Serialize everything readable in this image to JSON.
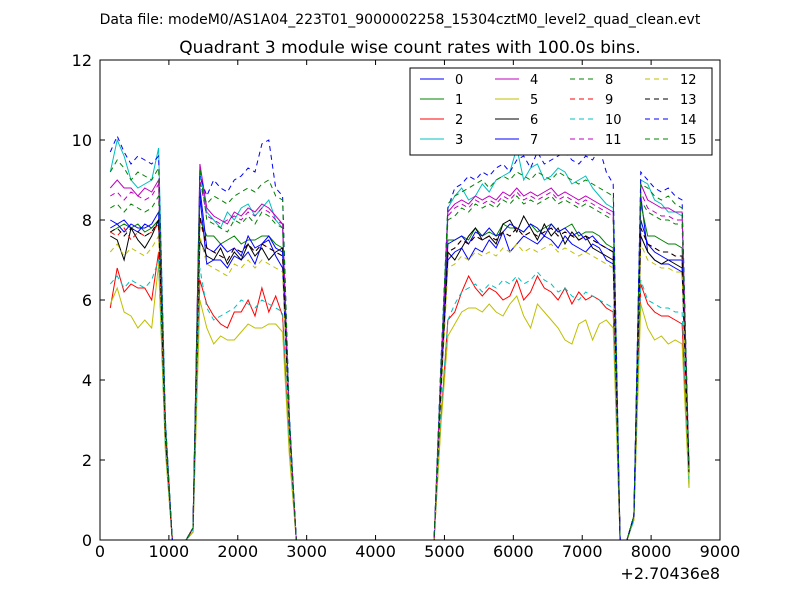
{
  "suptitle": "Data file: modeM0/AS1A04_223T01_9000002258_15304cztM0_level2_quad_clean.evt",
  "chart_data": {
    "type": "line",
    "title": "Quadrant 3 module wise count rates with 100.0s bins.",
    "xlabel": "",
    "ylabel": "",
    "x_offset_label": "+2.70436e8",
    "xlim": [
      0,
      9000
    ],
    "ylim": [
      0,
      12
    ],
    "xticks": [
      0,
      1000,
      2000,
      3000,
      4000,
      5000,
      6000,
      7000,
      8000,
      9000
    ],
    "yticks": [
      0,
      2,
      4,
      6,
      8,
      10,
      12
    ],
    "grid": false,
    "legend_position": "top-right",
    "legend_columns": 4,
    "x": [
      150,
      250,
      350,
      450,
      550,
      650,
      750,
      850,
      950,
      1050,
      1150,
      1250,
      1350,
      1450,
      1550,
      1650,
      1750,
      1850,
      1950,
      2050,
      2150,
      2250,
      2350,
      2450,
      2550,
      2650,
      2750,
      2850,
      4850,
      4950,
      5050,
      5150,
      5250,
      5350,
      5450,
      5550,
      5650,
      5750,
      5850,
      5950,
      6050,
      6150,
      6250,
      6350,
      6450,
      6550,
      6650,
      6750,
      6850,
      6950,
      7050,
      7150,
      7250,
      7350,
      7450,
      7550,
      7650,
      7750,
      7850,
      7950,
      8050,
      8150,
      8250,
      8350,
      8450,
      8550
    ],
    "series": [
      {
        "name": "0",
        "color": "#0000ff",
        "style": "solid",
        "values": [
          8.0,
          7.9,
          8.0,
          7.8,
          7.7,
          7.9,
          7.8,
          8.0,
          2.6,
          0.0,
          0.0,
          0.0,
          0.3,
          8.6,
          6.9,
          7.0,
          7.0,
          6.8,
          7.1,
          7.0,
          7.2,
          6.9,
          7.4,
          7.5,
          7.1,
          6.8,
          2.8,
          0.0,
          0.0,
          3.8,
          7.0,
          7.2,
          7.3,
          7.0,
          7.3,
          7.2,
          7.5,
          7.3,
          7.7,
          7.2,
          7.4,
          7.6,
          7.5,
          7.4,
          7.6,
          7.5,
          7.3,
          7.6,
          7.4,
          7.3,
          7.2,
          7.4,
          7.3,
          7.0,
          6.9,
          0.0,
          0.0,
          0.6,
          8.6,
          7.2,
          7.0,
          6.9,
          6.9,
          6.8,
          6.7,
          1.6
        ]
      },
      {
        "name": "1",
        "color": "#008000",
        "style": "solid",
        "values": [
          7.7,
          7.8,
          7.9,
          7.8,
          7.9,
          7.7,
          7.8,
          8.0,
          2.7,
          0.0,
          0.0,
          0.0,
          0.3,
          8.0,
          7.6,
          7.6,
          7.4,
          7.5,
          7.6,
          7.4,
          7.5,
          7.5,
          7.6,
          7.6,
          7.4,
          7.3,
          2.9,
          0.0,
          0.0,
          4.0,
          7.5,
          7.5,
          7.6,
          7.5,
          7.8,
          7.6,
          7.7,
          7.6,
          7.9,
          7.8,
          7.8,
          7.7,
          7.9,
          7.7,
          7.8,
          7.9,
          7.7,
          7.8,
          7.9,
          7.6,
          7.7,
          7.7,
          7.6,
          7.4,
          7.3,
          0.0,
          0.0,
          0.6,
          8.4,
          7.6,
          7.6,
          7.5,
          7.4,
          7.4,
          7.3,
          1.8
        ]
      },
      {
        "name": "2",
        "color": "#ff0000",
        "style": "solid",
        "values": [
          5.8,
          6.8,
          6.2,
          6.4,
          6.3,
          6.3,
          6.0,
          7.2,
          2.3,
          0.0,
          0.0,
          0.0,
          0.2,
          6.5,
          5.9,
          5.6,
          5.4,
          5.3,
          5.7,
          5.7,
          6.0,
          5.6,
          6.3,
          5.7,
          6.1,
          5.6,
          2.2,
          0.0,
          0.0,
          3.0,
          5.5,
          5.7,
          6.2,
          6.6,
          6.3,
          6.1,
          6.3,
          6.2,
          6.0,
          6.1,
          6.5,
          6.0,
          6.2,
          6.6,
          6.3,
          6.2,
          6.0,
          6.3,
          5.9,
          6.2,
          6.0,
          6.1,
          6.0,
          5.8,
          5.7,
          0.0,
          0.0,
          0.5,
          6.4,
          5.9,
          5.7,
          5.6,
          5.6,
          5.5,
          5.4,
          1.4
        ]
      },
      {
        "name": "3",
        "color": "#00bfbf",
        "style": "solid",
        "values": [
          9.2,
          10.0,
          9.6,
          9.0,
          8.8,
          8.9,
          9.0,
          9.8,
          3.0,
          0.0,
          0.0,
          0.0,
          0.3,
          9.2,
          8.2,
          8.0,
          7.8,
          8.2,
          8.0,
          8.3,
          8.4,
          8.1,
          8.3,
          8.5,
          8.0,
          7.8,
          3.1,
          0.0,
          0.0,
          4.4,
          8.3,
          8.6,
          8.8,
          8.5,
          8.6,
          8.9,
          8.7,
          9.0,
          9.1,
          9.2,
          9.8,
          9.0,
          9.3,
          9.4,
          9.0,
          9.1,
          9.3,
          9.2,
          8.9,
          9.0,
          9.1,
          8.8,
          8.6,
          8.4,
          8.3,
          0.0,
          0.0,
          0.6,
          9.0,
          8.9,
          8.5,
          8.4,
          8.2,
          8.2,
          8.1,
          1.3
        ]
      },
      {
        "name": "4",
        "color": "#bf00bf",
        "style": "solid",
        "values": [
          8.8,
          9.0,
          8.8,
          8.8,
          8.6,
          8.8,
          8.7,
          9.0,
          2.8,
          0.0,
          0.0,
          0.0,
          0.3,
          9.4,
          8.3,
          8.1,
          8.0,
          7.9,
          8.2,
          8.1,
          8.3,
          8.2,
          8.4,
          8.3,
          8.1,
          7.9,
          2.9,
          0.0,
          0.0,
          4.2,
          8.2,
          8.4,
          8.5,
          8.4,
          8.6,
          8.5,
          8.6,
          8.5,
          8.7,
          8.6,
          8.8,
          8.6,
          8.7,
          8.6,
          8.7,
          8.8,
          8.6,
          8.7,
          8.6,
          8.5,
          8.6,
          8.5,
          8.4,
          8.3,
          8.2,
          0.0,
          0.0,
          0.6,
          8.9,
          8.5,
          8.4,
          8.3,
          8.3,
          8.2,
          8.2,
          1.8
        ]
      },
      {
        "name": "5",
        "color": "#bfbf00",
        "style": "solid",
        "values": [
          5.9,
          6.3,
          5.7,
          5.6,
          5.3,
          5.5,
          5.3,
          6.9,
          2.2,
          0.0,
          0.0,
          0.0,
          0.2,
          6.0,
          5.3,
          4.9,
          5.1,
          5.0,
          5.0,
          5.2,
          5.4,
          5.3,
          5.3,
          5.4,
          5.4,
          5.2,
          2.1,
          0.0,
          0.0,
          2.9,
          5.1,
          5.4,
          5.7,
          5.8,
          5.8,
          5.7,
          5.9,
          5.7,
          5.6,
          5.9,
          6.1,
          5.6,
          5.3,
          5.9,
          5.7,
          5.5,
          5.3,
          5.0,
          4.9,
          5.4,
          5.5,
          5.0,
          5.4,
          5.5,
          5.3,
          0.0,
          0.0,
          0.5,
          5.9,
          5.3,
          5.0,
          5.1,
          4.9,
          5.0,
          4.9,
          1.3
        ]
      },
      {
        "name": "6",
        "color": "#000000",
        "style": "solid",
        "values": [
          7.6,
          7.5,
          7.0,
          7.8,
          7.5,
          7.3,
          7.6,
          8.0,
          2.6,
          0.0,
          0.0,
          0.0,
          0.3,
          7.5,
          7.1,
          7.0,
          7.3,
          6.9,
          7.2,
          7.0,
          7.4,
          7.1,
          7.3,
          7.0,
          7.2,
          7.3,
          2.8,
          0.0,
          0.0,
          3.9,
          7.2,
          7.0,
          7.3,
          7.6,
          7.8,
          7.5,
          7.6,
          7.4,
          7.9,
          8.0,
          7.7,
          8.1,
          7.8,
          7.5,
          7.9,
          7.6,
          7.8,
          7.4,
          7.7,
          7.5,
          7.6,
          7.3,
          7.2,
          7.1,
          7.0,
          0.0,
          0.0,
          0.6,
          7.6,
          7.2,
          7.0,
          6.9,
          7.0,
          6.9,
          6.8,
          1.7
        ]
      },
      {
        "name": "7",
        "color": "#0000ff",
        "style": "solid",
        "values": [
          7.8,
          7.9,
          7.7,
          7.9,
          7.8,
          7.8,
          7.9,
          8.2,
          2.7,
          0.0,
          0.0,
          0.0,
          0.3,
          8.8,
          7.3,
          7.2,
          7.4,
          7.2,
          7.3,
          7.1,
          7.6,
          7.3,
          7.4,
          7.6,
          7.3,
          7.2,
          2.9,
          0.0,
          0.0,
          4.0,
          7.4,
          7.5,
          7.6,
          7.4,
          7.7,
          7.6,
          7.8,
          7.6,
          7.7,
          7.9,
          7.8,
          7.7,
          7.9,
          7.8,
          7.6,
          7.9,
          7.7,
          7.8,
          7.6,
          7.7,
          7.5,
          7.6,
          7.4,
          7.3,
          7.2,
          0.0,
          0.0,
          0.6,
          8.0,
          7.4,
          7.2,
          7.1,
          7.0,
          7.0,
          7.0,
          1.8
        ]
      },
      {
        "name": "8",
        "color": "#008000",
        "style": "dashed",
        "values": [
          8.3,
          8.4,
          8.2,
          8.4,
          8.3,
          8.2,
          8.3,
          8.6,
          2.8,
          0.0,
          0.0,
          0.0,
          0.3,
          9.3,
          8.0,
          7.9,
          7.8,
          7.7,
          8.0,
          7.9,
          8.1,
          7.9,
          8.2,
          8.1,
          7.9,
          7.8,
          2.9,
          0.0,
          0.0,
          4.2,
          8.0,
          8.1,
          8.3,
          8.2,
          8.4,
          8.3,
          8.4,
          8.3,
          8.5,
          8.4,
          8.6,
          8.4,
          8.5,
          8.4,
          8.5,
          8.6,
          8.4,
          8.5,
          8.4,
          8.3,
          8.4,
          8.3,
          8.2,
          8.1,
          8.0,
          0.0,
          0.0,
          0.6,
          8.5,
          8.2,
          8.1,
          8.0,
          8.0,
          7.9,
          7.9,
          1.8
        ]
      },
      {
        "name": "9",
        "color": "#ff0000",
        "style": "dashed",
        "values": [
          7.7,
          7.6,
          7.8,
          7.5,
          7.7,
          7.6,
          7.7,
          7.9,
          2.6,
          0.0,
          0.0,
          0.0,
          0.3,
          8.0,
          7.3,
          7.2,
          7.1,
          7.0,
          7.3,
          7.2,
          7.4,
          7.2,
          7.4,
          7.3,
          7.2,
          7.1,
          2.8,
          0.0,
          0.0,
          3.8,
          7.2,
          7.3,
          7.5,
          7.4,
          7.6,
          7.5,
          7.6,
          7.5,
          7.7,
          7.6,
          7.8,
          7.6,
          7.7,
          7.6,
          7.7,
          7.8,
          7.6,
          7.7,
          7.6,
          7.5,
          7.6,
          7.5,
          7.4,
          7.3,
          7.2,
          0.0,
          0.0,
          0.6,
          7.8,
          7.4,
          7.3,
          7.2,
          7.2,
          7.1,
          7.1,
          1.7
        ]
      },
      {
        "name": "10",
        "color": "#00bfbf",
        "style": "dashed",
        "values": [
          6.4,
          6.6,
          6.3,
          6.5,
          6.4,
          6.3,
          6.5,
          7.0,
          2.3,
          0.0,
          0.0,
          0.0,
          0.2,
          6.8,
          5.8,
          5.5,
          5.6,
          5.7,
          5.8,
          6.0,
          5.9,
          5.8,
          6.0,
          5.9,
          5.8,
          5.7,
          2.4,
          0.0,
          0.0,
          3.2,
          5.5,
          5.9,
          6.2,
          6.3,
          6.4,
          6.2,
          6.4,
          6.3,
          6.5,
          6.4,
          6.6,
          6.4,
          6.5,
          6.7,
          6.5,
          6.4,
          6.2,
          6.3,
          6.1,
          6.0,
          6.2,
          6.1,
          6.0,
          5.9,
          5.8,
          0.0,
          0.0,
          0.5,
          6.5,
          6.0,
          5.9,
          5.8,
          5.8,
          5.7,
          5.7,
          1.5
        ]
      },
      {
        "name": "11",
        "color": "#bf00bf",
        "style": "dashed",
        "values": [
          8.6,
          8.7,
          8.5,
          8.7,
          8.6,
          8.5,
          8.6,
          8.9,
          2.8,
          0.0,
          0.0,
          0.0,
          0.3,
          9.0,
          8.1,
          8.0,
          7.9,
          8.0,
          8.1,
          8.0,
          8.2,
          8.1,
          8.3,
          8.2,
          8.0,
          7.9,
          2.9,
          0.0,
          0.0,
          4.2,
          8.1,
          8.3,
          8.4,
          8.3,
          8.5,
          8.4,
          8.5,
          8.4,
          8.6,
          8.5,
          8.7,
          8.5,
          8.6,
          8.5,
          8.6,
          8.7,
          8.5,
          8.6,
          8.5,
          8.4,
          8.5,
          8.4,
          8.3,
          8.2,
          8.1,
          0.0,
          0.0,
          0.6,
          8.7,
          8.3,
          8.2,
          8.1,
          8.1,
          8.0,
          8.0,
          1.8
        ]
      },
      {
        "name": "12",
        "color": "#bfbf00",
        "style": "dashed",
        "values": [
          7.2,
          7.4,
          7.1,
          7.3,
          7.2,
          7.1,
          7.3,
          7.6,
          2.5,
          0.0,
          0.0,
          0.0,
          0.3,
          7.6,
          6.9,
          6.8,
          6.7,
          6.6,
          6.9,
          6.8,
          7.0,
          6.8,
          7.0,
          6.9,
          6.8,
          6.7,
          2.6,
          0.0,
          0.0,
          3.6,
          6.8,
          6.9,
          7.1,
          7.0,
          7.2,
          7.1,
          7.2,
          7.1,
          7.3,
          7.2,
          7.4,
          7.2,
          7.3,
          7.2,
          7.3,
          7.4,
          7.2,
          7.3,
          7.2,
          7.1,
          7.2,
          7.1,
          7.0,
          6.9,
          6.8,
          0.0,
          0.0,
          0.6,
          7.4,
          7.0,
          6.9,
          6.8,
          6.8,
          6.7,
          6.7,
          1.6
        ]
      },
      {
        "name": "13",
        "color": "#000000",
        "style": "dashed",
        "values": [
          7.7,
          7.8,
          7.6,
          7.8,
          7.7,
          7.6,
          7.7,
          8.0,
          2.6,
          0.0,
          0.0,
          0.0,
          0.3,
          8.1,
          7.3,
          7.2,
          7.1,
          7.0,
          7.3,
          7.2,
          7.4,
          7.2,
          7.4,
          7.3,
          7.2,
          7.1,
          2.8,
          0.0,
          0.0,
          3.8,
          7.2,
          7.3,
          7.5,
          7.4,
          7.6,
          7.5,
          7.6,
          7.5,
          7.7,
          7.6,
          7.8,
          7.6,
          7.7,
          7.6,
          7.7,
          7.8,
          7.6,
          7.7,
          7.6,
          7.5,
          7.6,
          7.5,
          7.4,
          7.3,
          7.2,
          0.0,
          0.0,
          0.6,
          7.8,
          7.4,
          7.3,
          7.2,
          7.2,
          7.1,
          7.1,
          1.7
        ]
      },
      {
        "name": "14",
        "color": "#0000ff",
        "style": "dashed",
        "values": [
          9.7,
          10.1,
          9.7,
          9.4,
          9.6,
          9.5,
          9.4,
          9.6,
          3.0,
          0.0,
          0.0,
          0.0,
          0.3,
          9.1,
          8.6,
          9.0,
          8.8,
          8.7,
          9.0,
          9.1,
          9.3,
          9.2,
          9.9,
          10.0,
          8.8,
          8.6,
          3.1,
          0.0,
          0.0,
          4.5,
          8.3,
          8.8,
          8.9,
          9.1,
          9.0,
          9.2,
          9.1,
          9.3,
          9.4,
          9.2,
          9.5,
          9.6,
          9.3,
          9.7,
          9.4,
          9.5,
          9.6,
          9.7,
          9.5,
          9.4,
          9.6,
          9.5,
          9.8,
          9.2,
          8.9,
          0.0,
          0.0,
          0.6,
          9.2,
          9.0,
          8.8,
          8.7,
          8.8,
          8.6,
          8.5,
          1.8
        ]
      },
      {
        "name": "15",
        "color": "#008000",
        "style": "dashed",
        "values": [
          9.2,
          9.5,
          9.3,
          9.0,
          9.2,
          9.1,
          9.0,
          9.3,
          2.9,
          0.0,
          0.0,
          0.0,
          0.3,
          8.9,
          8.4,
          8.6,
          8.5,
          8.4,
          8.6,
          8.7,
          8.8,
          8.7,
          8.9,
          9.0,
          8.6,
          8.5,
          3.0,
          0.0,
          0.0,
          4.4,
          8.4,
          8.6,
          8.7,
          8.8,
          8.9,
          9.0,
          8.8,
          9.0,
          9.1,
          9.0,
          9.2,
          9.1,
          9.0,
          9.2,
          9.1,
          9.0,
          9.2,
          9.1,
          9.0,
          8.9,
          9.0,
          8.9,
          8.8,
          8.7,
          8.6,
          0.0,
          0.0,
          0.6,
          8.9,
          8.8,
          8.6,
          8.5,
          8.6,
          8.4,
          8.3,
          1.8
        ]
      }
    ]
  }
}
